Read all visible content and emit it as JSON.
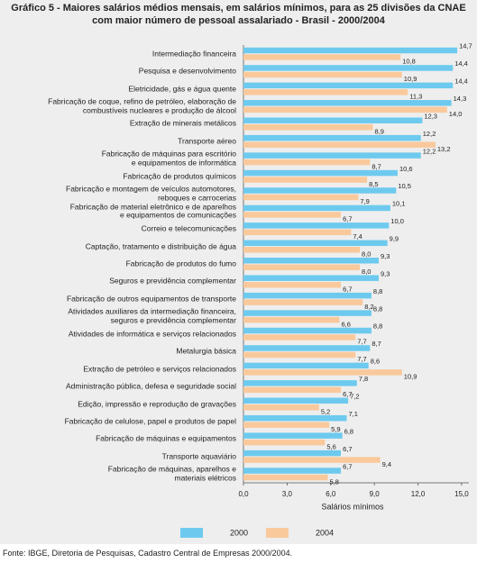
{
  "chart_data": {
    "type": "hbar",
    "title": "Gráfico 5 - Maiores salários médios mensais, em salários mínimos, para as 25 divisões da CNAE com maior número de pessoal assalariado - Brasil - 2000/2004",
    "x_label": "Salários mínimos",
    "source": "Fonte: IBGE, Diretoria de Pesquisas, Cadastro Central de Empresas 2000/2004.",
    "categories": [
      "Intermediação financeira",
      "Pesquisa e desenvolvimento",
      "Eletricidade, gás e água quente",
      "Fabricação de coque, refino de petróleo, elaboração de\ncombustíveis nucleares e produção de álcool",
      "Extração de minerais metálicos",
      "Transporte aéreo",
      "Fabricação de máquinas para escritório\ne equipamentos de informática",
      "Fabricação de produtos químicos",
      "Fabricação e montagem de veículos automotores,\nreboques e carrocerias",
      "Fabricação de material eletrônico  e de aparelhos\ne equipamentos de comunicações",
      "Correio e telecomunicações",
      "Captação, tratamento e distribuição de água",
      "Fabricação de produtos do fumo",
      "Seguros e previdência complementar",
      "Fabricação de outros equipamentos de transporte",
      "Atividades auxiliares da intermediação financeira,\nseguros e previdência  complementar",
      "Atividades de informática e serviços relacionados",
      "Metalurgia básica",
      "Extração de petróleo e serviços relacionados",
      "Administração pública, defesa e seguridade social",
      "Edição, impressão e reprodução de gravações",
      "Fabricação de celulose, papel e produtos de papel",
      "Fabricação de máquinas e equipamentos",
      "Transporte aquaviário",
      "Fabricação de máquinas, aparelhos e\nmateriais elétricos"
    ],
    "series": [
      {
        "name": "2000",
        "color": "#6dcaee",
        "values": [
          14.7,
          14.4,
          14.4,
          14.3,
          12.3,
          12.2,
          12.2,
          10.6,
          10.5,
          10.1,
          10.0,
          9.9,
          9.3,
          9.3,
          8.8,
          8.8,
          8.8,
          8.7,
          8.6,
          7.8,
          7.2,
          7.1,
          6.8,
          6.7,
          6.7
        ],
        "value_labels": [
          "14,7",
          "14,4",
          "14,4",
          "14,3",
          "12,3",
          "12,2",
          "12,2",
          "10,6",
          "10,5",
          "10,1",
          "10,0",
          "9,9",
          "9,3",
          "9,3",
          "8,8",
          "8,8",
          "8,8",
          "8,7",
          "8,6",
          "7,8",
          "7,2",
          "7,1",
          "6,8",
          "6,7",
          "6,7"
        ]
      },
      {
        "name": "2004",
        "color": "#f9c99c",
        "values": [
          10.8,
          10.9,
          11.3,
          14.0,
          8.9,
          13.2,
          8.7,
          8.5,
          7.9,
          6.7,
          7.4,
          8.0,
          8.0,
          6.7,
          8.2,
          6.6,
          7.7,
          7.7,
          10.9,
          6.7,
          5.2,
          5.9,
          5.6,
          9.4,
          5.8
        ],
        "value_labels": [
          "10,8",
          "10,9",
          "11,3",
          "14,0",
          "8,9",
          "13,2",
          "8,7",
          "8,5",
          "7,9",
          "6,7",
          "7,4",
          "8,0",
          "8,0",
          "6,7",
          "8,2",
          "6,6",
          "7,7",
          "7,7",
          "10,9",
          "6,7",
          "5,2",
          "5,9",
          "5,6",
          "9,4",
          "5,8"
        ]
      }
    ],
    "xlim": [
      0,
      15.5
    ],
    "xticks": [
      {
        "value": 0,
        "label": "0,0"
      },
      {
        "value": 3,
        "label": "3,0"
      },
      {
        "value": 6,
        "label": "6,0"
      },
      {
        "value": 9,
        "label": "9,0"
      },
      {
        "value": 12,
        "label": "12,0"
      },
      {
        "value": 15,
        "label": "15,0"
      }
    ]
  }
}
